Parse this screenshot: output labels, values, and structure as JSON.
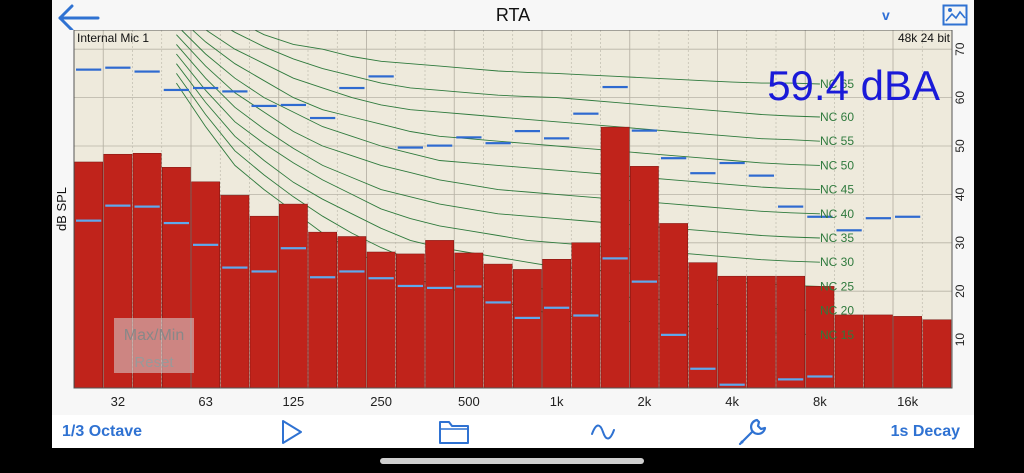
{
  "nav": {
    "title": "RTA",
    "weighting_toggle": "v",
    "back_icon": "arrow-left-icon",
    "image_icon": "image-icon"
  },
  "plot": {
    "input_label": "Internal Mic 1",
    "format_label": "48k 24 bit",
    "level_readout": "59.4 dBA",
    "maxmin_label": "Max/Min",
    "reset_label": "Reset"
  },
  "toolbar": {
    "resolution_label": "1/3 Octave",
    "decay_label": "1s Decay",
    "play_icon": "play-icon",
    "folder_icon": "folder-icon",
    "waveform_icon": "waveform-icon",
    "wrench_icon": "wrench-icon"
  },
  "colors": {
    "bar": "#c0231b",
    "max_line": "#2e6ad0",
    "min_line": "#5ea9ee",
    "nc_curve": "#2f7a3d",
    "grid_bg": "#eeeadc",
    "readout": "#1a1ad8",
    "accent": "#2f72d2"
  },
  "chart_data": {
    "type": "bar",
    "ylabel": "dB SPL",
    "ylim": [
      0,
      72
    ],
    "y_ticks": [
      "10",
      "20",
      "30",
      "40",
      "50",
      "60",
      "70"
    ],
    "x_tick_labels": [
      "32",
      "63",
      "125",
      "250",
      "500",
      "1k",
      "2k",
      "4k",
      "8k",
      "16k"
    ],
    "bands": [
      "25",
      "31.5",
      "40",
      "50",
      "63",
      "80",
      "100",
      "125",
      "160",
      "200",
      "250",
      "315",
      "400",
      "500",
      "630",
      "800",
      "1k",
      "1.25k",
      "1.6k",
      "2k",
      "2.5k",
      "3.15k",
      "4k",
      "5k",
      "6.3k",
      "8k",
      "10k",
      "12.5k",
      "16k",
      "20k"
    ],
    "series": [
      {
        "name": "level",
        "values": [
          46.7,
          48.3,
          48.5,
          45.6,
          42.6,
          39.8,
          35.5,
          38.0,
          32.2,
          31.3,
          28.1,
          27.7,
          30.5,
          27.9,
          25.6,
          24.5,
          26.6,
          30.0,
          53.9,
          45.8,
          34.0,
          25.9,
          23.1,
          23.1,
          23.1,
          21.0,
          15.1,
          15.1,
          14.8,
          14.1
        ]
      },
      {
        "name": "max",
        "values": [
          65.8,
          66.2,
          65.4,
          61.6,
          62.0,
          61.3,
          58.3,
          58.5,
          55.8,
          62.0,
          64.4,
          49.7,
          50.1,
          51.8,
          50.6,
          53.1,
          51.6,
          56.7,
          62.2,
          53.2,
          47.5,
          44.4,
          46.5,
          43.9,
          37.5,
          35.4,
          32.6,
          35.1,
          35.4,
          null
        ]
      },
      {
        "name": "min",
        "values": [
          34.6,
          37.7,
          37.5,
          34.1,
          29.6,
          24.9,
          24.1,
          28.9,
          22.9,
          24.1,
          22.7,
          21.1,
          20.7,
          21.0,
          17.7,
          14.5,
          16.6,
          15.0,
          26.8,
          22.0,
          11.0,
          4.0,
          0.7,
          null,
          1.8,
          2.4,
          null,
          null,
          null,
          null
        ]
      }
    ],
    "nc_curves": [
      {
        "name": "NC 65",
        "values": [
          null,
          null,
          null,
          83,
          79,
          76,
          73,
          71,
          70,
          68.5,
          67.5,
          67,
          66.5,
          66,
          65.5,
          65.2,
          65,
          64.7,
          64.4,
          64.1,
          63.8,
          63.5,
          63.2,
          63,
          63,
          62.8
        ]
      },
      {
        "name": "NC 60",
        "values": [
          null,
          null,
          null,
          81,
          77,
          73.5,
          70.5,
          68,
          66,
          64.5,
          63,
          62,
          61.5,
          61,
          60.5,
          60.2,
          60,
          59.5,
          59,
          58.5,
          58,
          57.5,
          57,
          56.5,
          56.2,
          56
        ]
      },
      {
        "name": "NC 55",
        "values": [
          null,
          null,
          null,
          79,
          74,
          70,
          67,
          64,
          62,
          60,
          58.5,
          57.5,
          57,
          56.5,
          56,
          55.5,
          55,
          54.5,
          54,
          53.5,
          53,
          52.5,
          52,
          51.5,
          51.3,
          51
        ]
      },
      {
        "name": "NC 50",
        "values": [
          null,
          null,
          null,
          77,
          71.5,
          67,
          63.5,
          60,
          57.5,
          56,
          54.5,
          53,
          52,
          51.5,
          51,
          50.5,
          50,
          49.5,
          49,
          48.5,
          48,
          47.5,
          47,
          46.5,
          46.2,
          46
        ]
      },
      {
        "name": "NC 45",
        "values": [
          null,
          null,
          null,
          75,
          69,
          64,
          60,
          57,
          54,
          52,
          50,
          48.5,
          47,
          46.5,
          46,
          45.5,
          45,
          44.5,
          44,
          43.5,
          43,
          42.5,
          42,
          41.5,
          41.2,
          41
        ]
      },
      {
        "name": "NC 40",
        "values": [
          null,
          null,
          null,
          73,
          66.5,
          61,
          57,
          53,
          50,
          48,
          46,
          44.5,
          43,
          42,
          41,
          40.5,
          40,
          39.5,
          39,
          38.5,
          38,
          37.5,
          37,
          36.5,
          36.2,
          36
        ]
      },
      {
        "name": "NC 35",
        "values": [
          null,
          null,
          null,
          71,
          64,
          58,
          53.5,
          49.5,
          46,
          43.5,
          41,
          39.5,
          38,
          37,
          36,
          35.5,
          35,
          34.5,
          34,
          33.5,
          33,
          32.5,
          32,
          31.5,
          31.2,
          31
        ]
      },
      {
        "name": "NC 30",
        "values": [
          null,
          null,
          null,
          69,
          61.5,
          55,
          50.5,
          46.5,
          43,
          40,
          37,
          35,
          33.5,
          32.5,
          31.5,
          30.5,
          30,
          29.5,
          29,
          28.5,
          28,
          27.5,
          27,
          26.5,
          26.2,
          26
        ]
      },
      {
        "name": "NC 25",
        "values": [
          null,
          null,
          null,
          67,
          59,
          52,
          47,
          42.5,
          39,
          36,
          33,
          30.5,
          29,
          28,
          27,
          26,
          25,
          24.5,
          24,
          23.5,
          23,
          22.5,
          22,
          21.5,
          21.2,
          21
        ]
      },
      {
        "name": "NC 20",
        "values": [
          null,
          null,
          null,
          65,
          56.5,
          49,
          44,
          39.5,
          35.5,
          32,
          29,
          26.5,
          25,
          23.5,
          22,
          21,
          20,
          19.5,
          19,
          18.5,
          18,
          17.5,
          17,
          16.5,
          16.2,
          16
        ]
      },
      {
        "name": "NC 15",
        "values": [
          null,
          null,
          null,
          63,
          54,
          46,
          41,
          36.5,
          32,
          28.5,
          25.5,
          23,
          21,
          19.5,
          18,
          16.5,
          15,
          14.5,
          14,
          13.5,
          13,
          12.5,
          12,
          11.5,
          11.2,
          11
        ]
      }
    ]
  }
}
